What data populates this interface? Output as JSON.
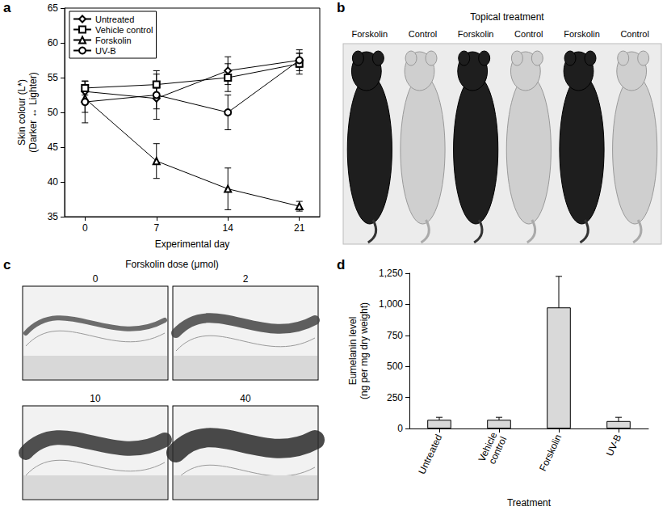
{
  "chart_data": [
    {
      "panel": "a",
      "type": "line",
      "x_label": "Experimental day",
      "y_label": [
        "Skin colour (L*)",
        "(Darker ↔ Lighter)"
      ],
      "x": [
        0,
        7,
        14,
        21
      ],
      "xlim": [
        -2,
        23
      ],
      "xticks": [
        0,
        7,
        14,
        21
      ],
      "ylim": [
        35,
        65
      ],
      "yticks": [
        35,
        40,
        45,
        50,
        55,
        60,
        65
      ],
      "grid": false,
      "legend": "top-left",
      "series": [
        {
          "name": "Untreated",
          "color": "#000000",
          "marker": "diamond",
          "values": [
            53,
            52,
            56,
            57.5
          ],
          "errors": [
            1.5,
            1.5,
            2,
            1.5
          ]
        },
        {
          "name": "Vehicle control",
          "color": "#000000",
          "marker": "square",
          "values": [
            53.5,
            54,
            55,
            57
          ],
          "errors": [
            1,
            1.5,
            2,
            1.5
          ]
        },
        {
          "name": "Forskolin",
          "color": "#000000",
          "marker": "triangle",
          "values": [
            52,
            43,
            39,
            36.5
          ],
          "errors": [
            2,
            2.5,
            3,
            0.7
          ]
        },
        {
          "name": "UV-B",
          "color": "#000000",
          "marker": "circle",
          "values": [
            51.5,
            52.5,
            50,
            57.5
          ],
          "errors": [
            3,
            3.5,
            2.5,
            1
          ]
        }
      ]
    },
    {
      "panel": "d",
      "type": "bar",
      "x_label": "Treatment",
      "y_label": [
        "Eumelanin level",
        "(ng per mg dry weight)"
      ],
      "categories": [
        "Untreated",
        "Vehicle control",
        "Forskolin",
        "UV-B"
      ],
      "values": [
        70,
        70,
        975,
        60
      ],
      "errors": [
        20,
        20,
        250,
        30
      ],
      "color": "#d9d9d9",
      "ylim": [
        0,
        1250
      ],
      "yticks": [
        0,
        250,
        500,
        750,
        {
          "value": 1000,
          "label": "1,000"
        },
        {
          "value": 1250,
          "label": "1,250"
        }
      ],
      "grid": false
    }
  ],
  "photo_panels": [
    {
      "panel": "b",
      "title": "Topical treatment",
      "labels": [
        "Forskolin",
        "Control",
        "Forskolin",
        "Control",
        "Forskolin",
        "Control"
      ]
    },
    {
      "panel": "c",
      "title": "Forskolin dose (μmol)",
      "labels": [
        0,
        2,
        10,
        40
      ]
    }
  ]
}
